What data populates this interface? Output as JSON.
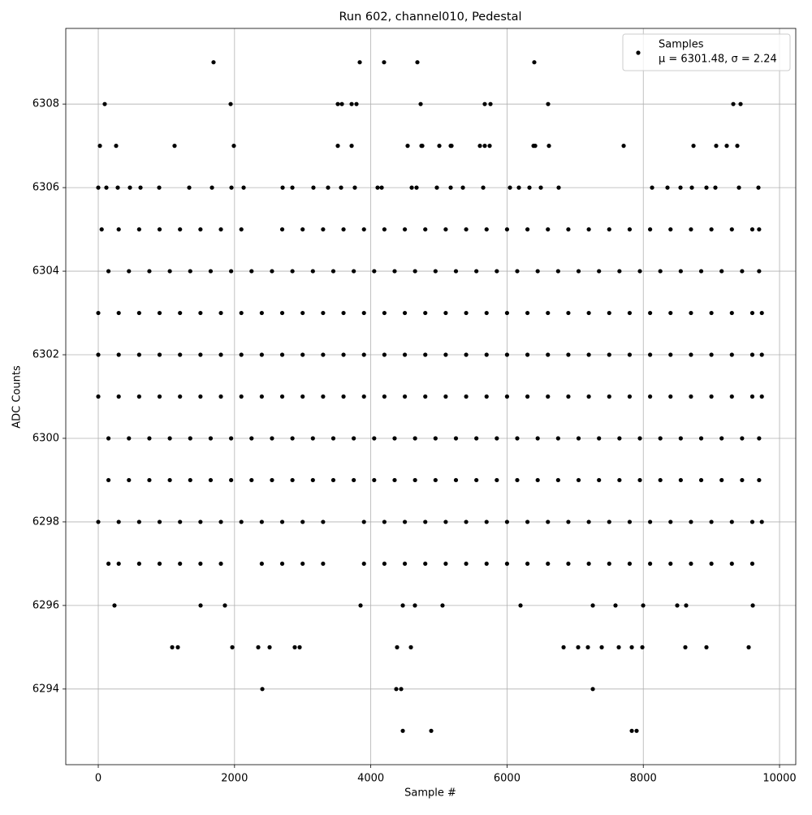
{
  "chart_data": {
    "type": "scatter",
    "title": "Run 602, channel010, Pedestal",
    "x_label": "Sample #",
    "y_label": "ADC Counts",
    "xlim": [
      -477,
      10238
    ],
    "ylim": [
      6292.19,
      6309.81
    ],
    "xticks": [
      0,
      2000,
      4000,
      6000,
      8000,
      10000
    ],
    "yticks": [
      6294,
      6296,
      6298,
      6300,
      6302,
      6304,
      6306,
      6308
    ],
    "grid": true,
    "legend": "upper right",
    "stats_label": "μ = 6301.48, σ = 2.24",
    "x": [
      0,
      300,
      600,
      900,
      1200,
      1500,
      1800,
      2100,
      2400,
      2700,
      3000,
      3300,
      3600,
      3900,
      4200,
      4500,
      4800,
      5100,
      5400,
      5700,
      6000,
      6300,
      6600,
      6900,
      7200,
      7500,
      7800,
      8100,
      8400,
      8700,
      9000,
      9300,
      9600,
      9740,
      0,
      300,
      600,
      900,
      1200,
      1500,
      1800,
      2100,
      2400,
      2700,
      3000,
      3300,
      3600,
      3900,
      4200,
      4500,
      4800,
      5100,
      5400,
      5700,
      6000,
      6300,
      6600,
      6900,
      7200,
      7500,
      7800,
      8100,
      8400,
      8700,
      9000,
      9300,
      9600,
      9740,
      0,
      300,
      600,
      900,
      1200,
      1500,
      1800,
      2100,
      2400,
      2700,
      3000,
      3300,
      3600,
      3900,
      4200,
      4500,
      4800,
      5100,
      5400,
      5700,
      6000,
      6300,
      6600,
      6900,
      7200,
      7500,
      7800,
      8100,
      8400,
      8700,
      9000,
      9300,
      9600,
      9740,
      150,
      450,
      750,
      1050,
      1350,
      1650,
      1950,
      2250,
      2550,
      2850,
      3150,
      3450,
      3750,
      4050,
      4350,
      4650,
      4950,
      5250,
      5550,
      5850,
      6150,
      6450,
      6750,
      7050,
      7350,
      7650,
      7950,
      8250,
      8550,
      8850,
      9150,
      9450,
      9700,
      150,
      450,
      750,
      1050,
      1350,
      1650,
      1950,
      2250,
      2550,
      2850,
      3150,
      3450,
      3750,
      4050,
      4350,
      4650,
      4950,
      5250,
      5550,
      5850,
      6150,
      6450,
      6750,
      7050,
      7350,
      7650,
      7950,
      8250,
      8550,
      8850,
      9150,
      9450,
      9700,
      150,
      450,
      750,
      1050,
      1350,
      1650,
      1950,
      2250,
      2550,
      2850,
      3150,
      3450,
      3750,
      4050,
      4350,
      4650,
      4950,
      5250,
      5550,
      5850,
      6150,
      6450,
      6750,
      7050,
      7350,
      7650,
      7950,
      8250,
      8550,
      8850,
      9150,
      9450,
      9700,
      0,
      300,
      600,
      900,
      1200,
      1500,
      1800,
      2100,
      2400,
      2700,
      3000,
      3300,
      3900,
      4200,
      4500,
      4800,
      5100,
      5400,
      5700,
      6000,
      6300,
      6600,
      6900,
      7200,
      7500,
      7800,
      8100,
      8400,
      8700,
      9000,
      9300,
      9600,
      9740,
      150,
      300,
      600,
      900,
      1200,
      1500,
      1800,
      2400,
      2700,
      3000,
      3300,
      3900,
      4200,
      4500,
      4800,
      5100,
      5400,
      5700,
      6000,
      6300,
      6600,
      6900,
      7200,
      7500,
      7800,
      8100,
      8400,
      8700,
      9000,
      9300,
      9600,
      50,
      300,
      600,
      900,
      1200,
      1500,
      1800,
      2100,
      2700,
      3000,
      3300,
      3600,
      3900,
      4200,
      4500,
      4800,
      5100,
      5400,
      5700,
      6000,
      6300,
      6600,
      6900,
      7200,
      7500,
      7800,
      8100,
      8400,
      8700,
      9000,
      9300,
      9600,
      9700,
      1692,
      3838,
      4195,
      4684,
      6400,
      95,
      1943,
      3516,
      3576,
      3719,
      3790,
      4732,
      5673,
      5757,
      6603,
      9321,
      9428,
      24,
      262,
      1120,
      1990,
      3516,
      3719,
      4541,
      4744,
      4756,
      5006,
      5173,
      5185,
      5602,
      5673,
      5745,
      6389,
      6413,
      6615,
      7712,
      8737,
      9070,
      9225,
      9380,
      0,
      119,
      286,
      465,
      620,
      894,
      1335,
      1669,
      1955,
      2134,
      2706,
      2849,
      3158,
      3373,
      3564,
      3766,
      4100,
      4160,
      4601,
      4672,
      4970,
      5173,
      5352,
      5650,
      6043,
      6174,
      6329,
      6496,
      6758,
      8129,
      8355,
      8546,
      8713,
      8927,
      9058,
      9404,
      9690,
      238,
      1502,
      1859,
      3850,
      4470,
      4648,
      5053,
      6198,
      7259,
      7592,
      7998,
      8498,
      8629,
      9607,
      1085,
      1168,
      1967,
      2348,
      2515,
      2884,
      2956,
      4386,
      4589,
      6830,
      7044,
      7187,
      7390,
      7640,
      7831,
      7986,
      8617,
      8927,
      9547,
      2408,
      4374,
      4446,
      7259,
      4470,
      4887,
      7831,
      7902
    ],
    "series": [
      {
        "name": "Samples",
        "color": "#000000",
        "values": [
          6301,
          6301,
          6301,
          6301,
          6301,
          6301,
          6301,
          6301,
          6301,
          6301,
          6301,
          6301,
          6301,
          6301,
          6301,
          6301,
          6301,
          6301,
          6301,
          6301,
          6301,
          6301,
          6301,
          6301,
          6301,
          6301,
          6301,
          6301,
          6301,
          6301,
          6301,
          6301,
          6301,
          6301,
          6302,
          6302,
          6302,
          6302,
          6302,
          6302,
          6302,
          6302,
          6302,
          6302,
          6302,
          6302,
          6302,
          6302,
          6302,
          6302,
          6302,
          6302,
          6302,
          6302,
          6302,
          6302,
          6302,
          6302,
          6302,
          6302,
          6302,
          6302,
          6302,
          6302,
          6302,
          6302,
          6302,
          6302,
          6303,
          6303,
          6303,
          6303,
          6303,
          6303,
          6303,
          6303,
          6303,
          6303,
          6303,
          6303,
          6303,
          6303,
          6303,
          6303,
          6303,
          6303,
          6303,
          6303,
          6303,
          6303,
          6303,
          6303,
          6303,
          6303,
          6303,
          6303,
          6303,
          6303,
          6303,
          6303,
          6303,
          6303,
          6300,
          6300,
          6300,
          6300,
          6300,
          6300,
          6300,
          6300,
          6300,
          6300,
          6300,
          6300,
          6300,
          6300,
          6300,
          6300,
          6300,
          6300,
          6300,
          6300,
          6300,
          6300,
          6300,
          6300,
          6300,
          6300,
          6300,
          6300,
          6300,
          6300,
          6300,
          6300,
          6300,
          6304,
          6304,
          6304,
          6304,
          6304,
          6304,
          6304,
          6304,
          6304,
          6304,
          6304,
          6304,
          6304,
          6304,
          6304,
          6304,
          6304,
          6304,
          6304,
          6304,
          6304,
          6304,
          6304,
          6304,
          6304,
          6304,
          6304,
          6304,
          6304,
          6304,
          6304,
          6304,
          6304,
          6299,
          6299,
          6299,
          6299,
          6299,
          6299,
          6299,
          6299,
          6299,
          6299,
          6299,
          6299,
          6299,
          6299,
          6299,
          6299,
          6299,
          6299,
          6299,
          6299,
          6299,
          6299,
          6299,
          6299,
          6299,
          6299,
          6299,
          6299,
          6299,
          6299,
          6299,
          6299,
          6299,
          6298,
          6298,
          6298,
          6298,
          6298,
          6298,
          6298,
          6298,
          6298,
          6298,
          6298,
          6298,
          6298,
          6298,
          6298,
          6298,
          6298,
          6298,
          6298,
          6298,
          6298,
          6298,
          6298,
          6298,
          6298,
          6298,
          6298,
          6298,
          6298,
          6298,
          6298,
          6298,
          6298,
          6297,
          6297,
          6297,
          6297,
          6297,
          6297,
          6297,
          6297,
          6297,
          6297,
          6297,
          6297,
          6297,
          6297,
          6297,
          6297,
          6297,
          6297,
          6297,
          6297,
          6297,
          6297,
          6297,
          6297,
          6297,
          6297,
          6297,
          6297,
          6297,
          6297,
          6297,
          6305,
          6305,
          6305,
          6305,
          6305,
          6305,
          6305,
          6305,
          6305,
          6305,
          6305,
          6305,
          6305,
          6305,
          6305,
          6305,
          6305,
          6305,
          6305,
          6305,
          6305,
          6305,
          6305,
          6305,
          6305,
          6305,
          6305,
          6305,
          6305,
          6305,
          6305,
          6305,
          6305,
          6309,
          6309,
          6309,
          6309,
          6309,
          6308,
          6308,
          6308,
          6308,
          6308,
          6308,
          6308,
          6308,
          6308,
          6308,
          6308,
          6308,
          6307,
          6307,
          6307,
          6307,
          6307,
          6307,
          6307,
          6307,
          6307,
          6307,
          6307,
          6307,
          6307,
          6307,
          6307,
          6307,
          6307,
          6307,
          6307,
          6307,
          6307,
          6307,
          6307,
          6306,
          6306,
          6306,
          6306,
          6306,
          6306,
          6306,
          6306,
          6306,
          6306,
          6306,
          6306,
          6306,
          6306,
          6306,
          6306,
          6306,
          6306,
          6306,
          6306,
          6306,
          6306,
          6306,
          6306,
          6306,
          6306,
          6306,
          6306,
          6306,
          6306,
          6306,
          6306,
          6306,
          6306,
          6306,
          6306,
          6306,
          6296,
          6296,
          6296,
          6296,
          6296,
          6296,
          6296,
          6296,
          6296,
          6296,
          6296,
          6296,
          6296,
          6296,
          6295,
          6295,
          6295,
          6295,
          6295,
          6295,
          6295,
          6295,
          6295,
          6295,
          6295,
          6295,
          6295,
          6295,
          6295,
          6295,
          6295,
          6295,
          6295,
          6294,
          6294,
          6294,
          6294,
          6293,
          6293,
          6293,
          6293
        ]
      }
    ]
  }
}
